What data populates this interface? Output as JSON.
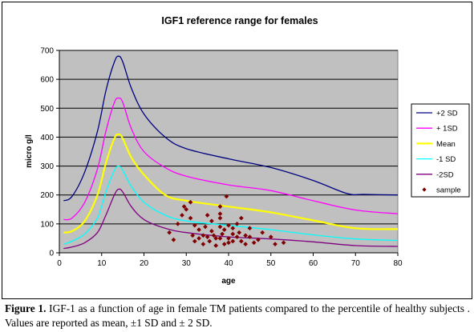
{
  "chart_data": {
    "type": "line",
    "title": "IGF1 reference range for females",
    "xlabel": "age",
    "ylabel": "micro g/l",
    "xlim": [
      0,
      80
    ],
    "ylim": [
      0,
      700
    ],
    "x_ticks": [
      0,
      10,
      20,
      30,
      40,
      50,
      60,
      70,
      80
    ],
    "y_ticks": [
      0,
      100,
      200,
      300,
      400,
      500,
      600,
      700
    ],
    "grid": "horizontal",
    "plot_background": "#c0c0c0",
    "legend_position": "right",
    "series": [
      {
        "name": "+2 SD",
        "color": "#000080",
        "kind": "line",
        "x": [
          1,
          3,
          6,
          9,
          11,
          13,
          14,
          15,
          17,
          20,
          25,
          30,
          40,
          50,
          60,
          68,
          72,
          80
        ],
        "y": [
          180,
          195,
          280,
          420,
          560,
          660,
          680,
          660,
          570,
          480,
          400,
          360,
          325,
          295,
          250,
          205,
          202,
          200
        ]
      },
      {
        "name": "+ 1SD",
        "color": "#ff00ff",
        "kind": "line",
        "x": [
          1,
          3,
          6,
          9,
          11,
          13,
          14,
          15,
          17,
          20,
          25,
          30,
          40,
          50,
          60,
          70,
          80
        ],
        "y": [
          115,
          120,
          175,
          290,
          420,
          520,
          535,
          520,
          430,
          350,
          295,
          265,
          235,
          215,
          180,
          148,
          135
        ]
      },
      {
        "name": "Mean",
        "color": "#ffff00",
        "kind": "line",
        "x": [
          1,
          3,
          6,
          9,
          11,
          13,
          14,
          15,
          17,
          20,
          25,
          30,
          40,
          50,
          60,
          70,
          80
        ],
        "y": [
          70,
          75,
          110,
          200,
          310,
          395,
          410,
          395,
          330,
          270,
          200,
          180,
          160,
          140,
          112,
          85,
          82
        ]
      },
      {
        "name": "-1 SD",
        "color": "#00ffff",
        "kind": "line",
        "x": [
          1,
          3,
          6,
          9,
          11,
          13,
          14,
          15,
          17,
          20,
          25,
          30,
          40,
          50,
          60,
          70,
          80
        ],
        "y": [
          30,
          40,
          65,
          120,
          210,
          285,
          300,
          285,
          230,
          175,
          130,
          110,
          95,
          80,
          62,
          48,
          43
        ]
      },
      {
        "name": "-2SD",
        "color": "#800080",
        "kind": "line",
        "x": [
          1,
          3,
          6,
          9,
          11,
          13,
          14,
          15,
          17,
          20,
          25,
          30,
          40,
          50,
          60,
          70,
          80
        ],
        "y": [
          15,
          20,
          35,
          70,
          130,
          200,
          220,
          210,
          160,
          115,
          85,
          70,
          55,
          48,
          38,
          25,
          22
        ]
      },
      {
        "name": "sample",
        "color": "#800000",
        "kind": "scatter",
        "points": [
          [
            26,
            70
          ],
          [
            27,
            45
          ],
          [
            28,
            100
          ],
          [
            29,
            130
          ],
          [
            29.5,
            160
          ],
          [
            30,
            150
          ],
          [
            31,
            175
          ],
          [
            31,
            120
          ],
          [
            31.5,
            60
          ],
          [
            32,
            40
          ],
          [
            32,
            95
          ],
          [
            33,
            80
          ],
          [
            33,
            50
          ],
          [
            34,
            60
          ],
          [
            34,
            30
          ],
          [
            34.5,
            90
          ],
          [
            35,
            130
          ],
          [
            35,
            55
          ],
          [
            35.5,
            40
          ],
          [
            36,
            75
          ],
          [
            36,
            110
          ],
          [
            36.5,
            60
          ],
          [
            37,
            25
          ],
          [
            37,
            50
          ],
          [
            38,
            135
          ],
          [
            38,
            160
          ],
          [
            38,
            120
          ],
          [
            38,
            90
          ],
          [
            38,
            50
          ],
          [
            38.5,
            65
          ],
          [
            39,
            30
          ],
          [
            39,
            80
          ],
          [
            39.5,
            195
          ],
          [
            40,
            95
          ],
          [
            40,
            50
          ],
          [
            40,
            35
          ],
          [
            41,
            65
          ],
          [
            41,
            40
          ],
          [
            41,
            85
          ],
          [
            42,
            100
          ],
          [
            42,
            55
          ],
          [
            42.5,
            70
          ],
          [
            43,
            40
          ],
          [
            43,
            120
          ],
          [
            44,
            60
          ],
          [
            44,
            30
          ],
          [
            45,
            85
          ],
          [
            45,
            55
          ],
          [
            46,
            35
          ],
          [
            47,
            45
          ],
          [
            48,
            70
          ],
          [
            50,
            55
          ],
          [
            51,
            30
          ],
          [
            53,
            35
          ]
        ]
      }
    ]
  },
  "caption": {
    "label": "Figure 1.",
    "text": " IGF-1 as a function of age in female TM patients compared to the percentile of healthy subjects . Values are reported as mean, ±1 SD and ± 2 SD."
  }
}
